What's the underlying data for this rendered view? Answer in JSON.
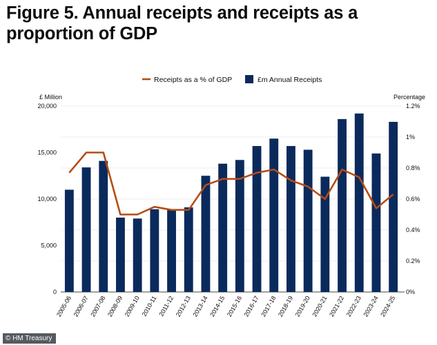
{
  "chart_data": {
    "type": "bar+line",
    "title": "Figure 5. Annual receipts and receipts as a proportion of GDP",
    "categories": [
      "2005-06",
      "2006-07",
      "2007-08",
      "2008-09",
      "2009-10",
      "2010-11",
      "2011-12",
      "2012-13",
      "2013-14",
      "2014-15",
      "2015-16",
      "2016-17",
      "2017-18",
      "2018-19",
      "2019-20",
      "2020-21",
      "2021-22",
      "2022-23",
      "2023-24",
      "2024-25"
    ],
    "series": [
      {
        "name": "£m Annual Receipts",
        "type": "bar",
        "axis": "left",
        "color": "#0b2a5c",
        "values": [
          11000,
          13400,
          14100,
          8000,
          7900,
          8900,
          8900,
          9100,
          12500,
          13800,
          14200,
          15700,
          16500,
          15700,
          15300,
          12400,
          18600,
          19200,
          14900,
          18300
        ]
      },
      {
        "name": "Receipts as a % of GDP",
        "type": "line",
        "axis": "right",
        "color": "#b54c14",
        "values": [
          0.77,
          0.9,
          0.9,
          0.5,
          0.5,
          0.55,
          0.53,
          0.53,
          0.69,
          0.73,
          0.73,
          0.77,
          0.79,
          0.72,
          0.68,
          0.6,
          0.79,
          0.74,
          0.54,
          0.63
        ]
      }
    ],
    "left_axis": {
      "label": "£ Million",
      "ylim": [
        0,
        20000
      ],
      "ticks": [
        0,
        5000,
        10000,
        15000,
        20000
      ],
      "tick_labels": [
        "0",
        "5,000",
        "10,000",
        "15,000",
        "20,000"
      ]
    },
    "right_axis": {
      "label": "Percentage",
      "ylim": [
        0,
        1.2
      ],
      "ticks": [
        0,
        0.2,
        0.4,
        0.6,
        0.8,
        1.0,
        1.2
      ],
      "tick_labels": [
        "0%",
        "0.2%",
        "0.4%",
        "0.6%",
        "0.8%",
        "1%",
        "1.2%"
      ]
    },
    "legend": {
      "placement": "top",
      "entries": [
        "Receipts as a % of GDP",
        "£m Annual Receipts"
      ]
    },
    "grid": true
  },
  "source": "© HM Treasury"
}
